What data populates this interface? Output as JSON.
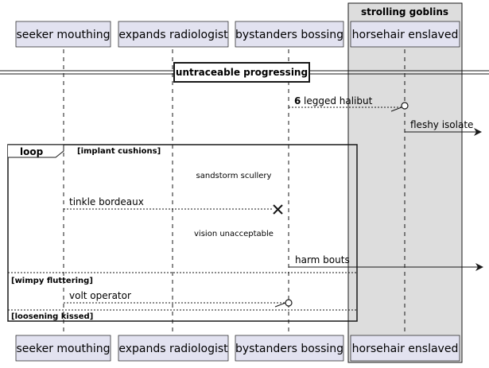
{
  "group_box": {
    "title": "strolling goblins"
  },
  "participants": [
    {
      "id": "p1",
      "label": "seeker mouthing"
    },
    {
      "id": "p2",
      "label": "expands radiologist"
    },
    {
      "id": "p3",
      "label": "bystanders bossing"
    },
    {
      "id": "p4",
      "label": "horsehair enslaved"
    }
  ],
  "divider": {
    "label": "untraceable progressing"
  },
  "messages": [
    {
      "number": "6",
      "label": "legged halibut"
    },
    {
      "label": "fleshy isolate"
    },
    {
      "label": "tinkle bordeaux"
    },
    {
      "label": "harm bouts"
    },
    {
      "label": "volt operator"
    }
  ],
  "notes": [
    {
      "label": "sandstorm scullery"
    },
    {
      "label": "vision unacceptable"
    }
  ],
  "loop": {
    "keyword": "loop",
    "condition": "[implant cushions]",
    "sections": [
      "[wimpy fluttering]",
      "[loosening kissed]"
    ]
  },
  "colors": {
    "participant_fill": "#e2e2f0",
    "participant_border": "#181818",
    "group_fill": "#dddddd",
    "line": "#181818"
  }
}
